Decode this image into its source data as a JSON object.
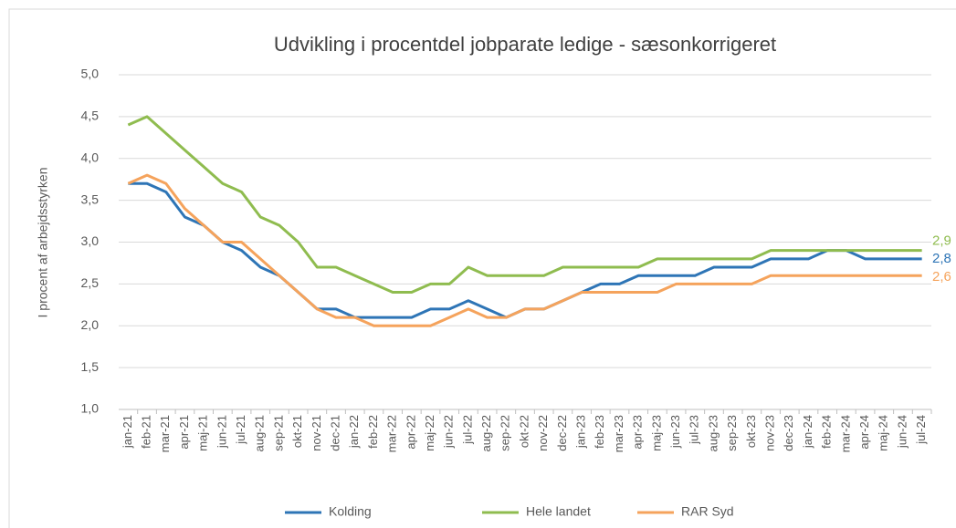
{
  "chart_data": {
    "type": "line",
    "title": "Udvikling i procentdel jobparate ledige - sæsonkorrigeret",
    "y_label": "I procent af arbejdsstyrken",
    "categories": [
      "jan-21",
      "feb-21",
      "mar-21",
      "apr-21",
      "maj-21",
      "jun-21",
      "jul-21",
      "aug-21",
      "sep-21",
      "okt-21",
      "nov-21",
      "dec-21",
      "jan-22",
      "feb-22",
      "mar-22",
      "apr-22",
      "maj-22",
      "jun-22",
      "jul-22",
      "aug-22",
      "sep-22",
      "okt-22",
      "nov-22",
      "dec-22",
      "jan-23",
      "feb-23",
      "mar-23",
      "apr-23",
      "maj-23",
      "jun-23",
      "jul-23",
      "aug-23",
      "sep-23",
      "okt-23",
      "nov-23",
      "dec-23",
      "jan-24",
      "feb-24",
      "mar-24",
      "apr-24",
      "maj-24",
      "jun-24",
      "jul-24"
    ],
    "series": [
      {
        "name": "Kolding",
        "color": "#2e75b6",
        "values": [
          3.7,
          3.7,
          3.6,
          3.3,
          3.2,
          3.0,
          2.9,
          2.7,
          2.6,
          2.4,
          2.2,
          2.2,
          2.1,
          2.1,
          2.1,
          2.1,
          2.2,
          2.2,
          2.3,
          2.2,
          2.1,
          2.2,
          2.2,
          2.3,
          2.4,
          2.5,
          2.5,
          2.6,
          2.6,
          2.6,
          2.6,
          2.7,
          2.7,
          2.7,
          2.8,
          2.8,
          2.8,
          2.9,
          2.9,
          2.8,
          2.8,
          2.8,
          2.8
        ],
        "value_labels": [
          null,
          null,
          null,
          null,
          null,
          null,
          null,
          null,
          null,
          null,
          null,
          null,
          null,
          null,
          null,
          null,
          null,
          null,
          null,
          null,
          null,
          null,
          null,
          null,
          null,
          null,
          null,
          null,
          null,
          null,
          null,
          null,
          null,
          null,
          null,
          null,
          null,
          null,
          null,
          null,
          null,
          null,
          "2,8"
        ]
      },
      {
        "name": "Hele landet",
        "color": "#8fbc4f",
        "values": [
          4.4,
          4.5,
          4.3,
          4.1,
          3.9,
          3.7,
          3.6,
          3.3,
          3.2,
          3.0,
          2.7,
          2.7,
          2.6,
          2.5,
          2.4,
          2.4,
          2.5,
          2.5,
          2.7,
          2.6,
          2.6,
          2.6,
          2.6,
          2.7,
          2.7,
          2.7,
          2.7,
          2.7,
          2.8,
          2.8,
          2.8,
          2.8,
          2.8,
          2.8,
          2.9,
          2.9,
          2.9,
          2.9,
          2.9,
          2.9,
          2.9,
          2.9,
          2.9
        ],
        "value_labels": [
          null,
          null,
          null,
          null,
          null,
          null,
          null,
          null,
          null,
          null,
          null,
          null,
          null,
          null,
          null,
          null,
          null,
          null,
          null,
          null,
          null,
          null,
          null,
          null,
          null,
          null,
          null,
          null,
          null,
          null,
          null,
          null,
          null,
          null,
          null,
          null,
          null,
          null,
          null,
          null,
          null,
          null,
          "2,9"
        ]
      },
      {
        "name": "RAR Syd",
        "color": "#f5a35c",
        "values": [
          3.7,
          3.8,
          3.7,
          3.4,
          3.2,
          3.0,
          3.0,
          2.8,
          2.6,
          2.4,
          2.2,
          2.1,
          2.1,
          2.0,
          2.0,
          2.0,
          2.0,
          2.1,
          2.2,
          2.1,
          2.1,
          2.2,
          2.2,
          2.3,
          2.4,
          2.4,
          2.4,
          2.4,
          2.4,
          2.5,
          2.5,
          2.5,
          2.5,
          2.5,
          2.6,
          2.6,
          2.6,
          2.6,
          2.6,
          2.6,
          2.6,
          2.6,
          2.6
        ],
        "value_labels": [
          null,
          null,
          null,
          null,
          null,
          null,
          null,
          null,
          null,
          null,
          null,
          null,
          null,
          null,
          null,
          null,
          null,
          null,
          null,
          null,
          null,
          null,
          null,
          null,
          null,
          null,
          null,
          null,
          null,
          null,
          null,
          null,
          null,
          null,
          null,
          null,
          null,
          null,
          null,
          null,
          null,
          null,
          "2,6"
        ]
      }
    ],
    "ylim": [
      1.0,
      5.0
    ],
    "yticks": [
      {
        "value": 1.0,
        "label": "1,0"
      },
      {
        "value": 1.5,
        "label": "1,5"
      },
      {
        "value": 2.0,
        "label": "2,0"
      },
      {
        "value": 2.5,
        "label": "2,5"
      },
      {
        "value": 3.0,
        "label": "3,0"
      },
      {
        "value": 3.5,
        "label": "3,5"
      },
      {
        "value": 4.0,
        "label": "4,0"
      },
      {
        "value": 4.5,
        "label": "4,5"
      },
      {
        "value": 5.0,
        "label": "5,0"
      }
    ],
    "grid": true,
    "legend": "bottom"
  }
}
